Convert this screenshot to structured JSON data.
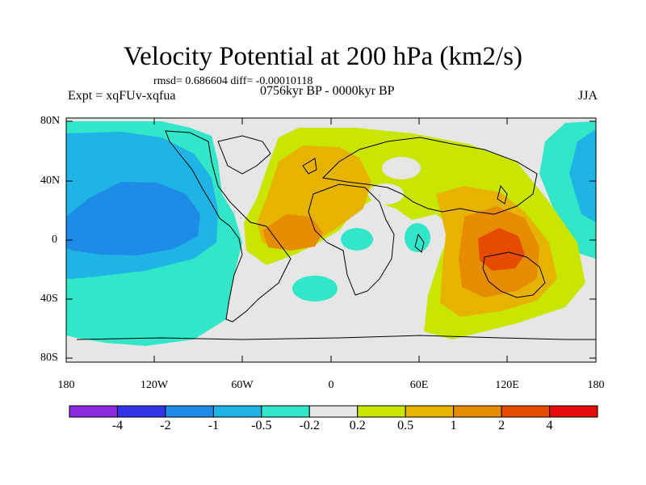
{
  "header": {
    "title": "Velocity Potential at 200 hPa (km2/s)",
    "stats": "rmsd= 0.686604 diff= -0.00010118",
    "expt": "Expt = xqFUv-xqfua",
    "period": "0756kyr BP - 0000kyr BP",
    "season": "JJA"
  },
  "map": {
    "projection": "cylindrical-equidistant",
    "lat_labels": [
      "80N",
      "40N",
      "0",
      "40S",
      "80S"
    ],
    "lon_labels": [
      "180",
      "120W",
      "60W",
      "0",
      "60E",
      "120E",
      "180"
    ]
  },
  "colorbar": {
    "colors": [
      "#8a2be2",
      "#3232e6",
      "#1e8ce6",
      "#1eb4e6",
      "#32e6c8",
      "#e6e6e6",
      "#c8e600",
      "#e6b400",
      "#e68c00",
      "#e64b00",
      "#e60a0a"
    ],
    "labels": [
      "-4",
      "-2",
      "-1",
      "-0.5",
      "-0.2",
      "0.2",
      "0.5",
      "1",
      "2",
      "4"
    ]
  }
}
